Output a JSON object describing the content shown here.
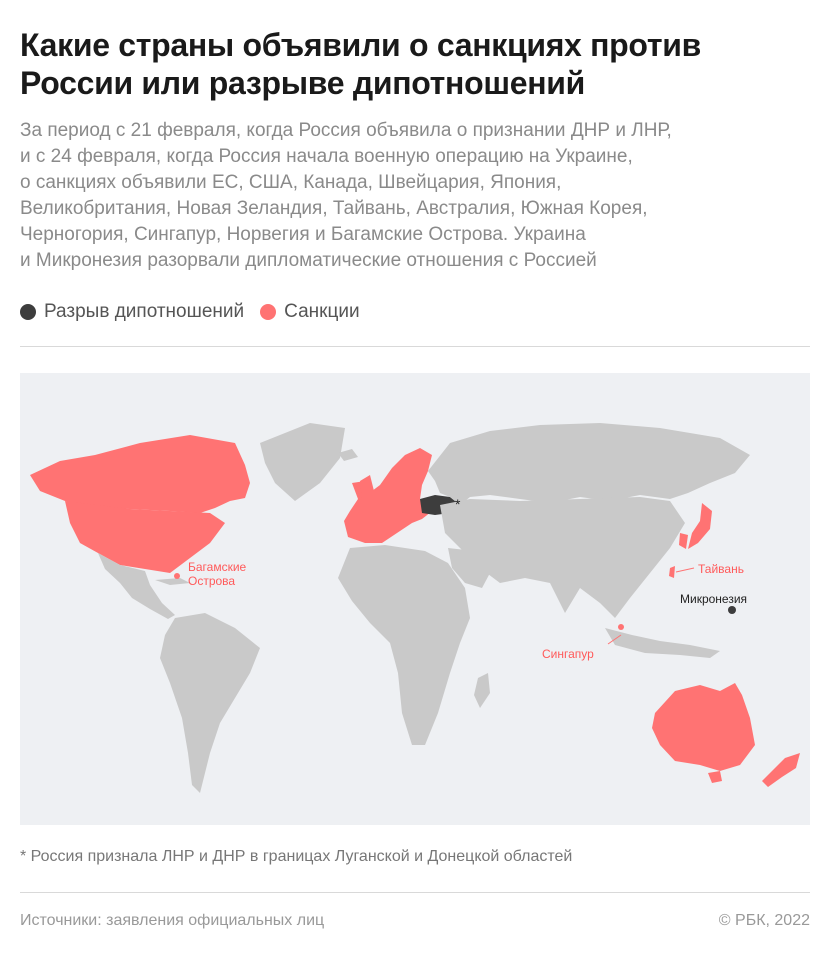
{
  "title": "Какие страны объявили о санкциях против России или разрыве дипотношений",
  "subtitle": "За период с 21 февраля, когда Россия объявила о признании ДНР и ЛНР,\nи с 24 февраля, когда Россия начала военную операцию на Украине,\nо санкциях объявили ЕС, США, Канада, Швейцария, Япония,\nВеликобритания, Новая Зеландия, Тайвань, Австралия, Южная Корея,\nЧерногория, Сингапур, Норвегия и Багамские Острова. Украина\nи Микронезия разорвали дипломатические отношения с Россией",
  "legend": [
    {
      "label": "Разрыв дипотношений",
      "color": "#3d3d3d"
    },
    {
      "label": "Санкции",
      "color": "#ff7373"
    }
  ],
  "colors": {
    "sanctions": "#ff7373",
    "break": "#3d3d3d",
    "land": "#c9c9c9",
    "ocean": "#eef0f3"
  },
  "labels": {
    "bahamas": "Багамские\nОстрова",
    "taiwan": "Тайвань",
    "micronesia": "Микронезия",
    "singapore": "Сингапур",
    "asterisk": "*"
  },
  "footnote": "* Россия признала ЛНР и ДНР в границах Луганской и Донецкой областей",
  "source": "Источники: заявления официальных лиц",
  "copyright": "© РБК, 2022"
}
